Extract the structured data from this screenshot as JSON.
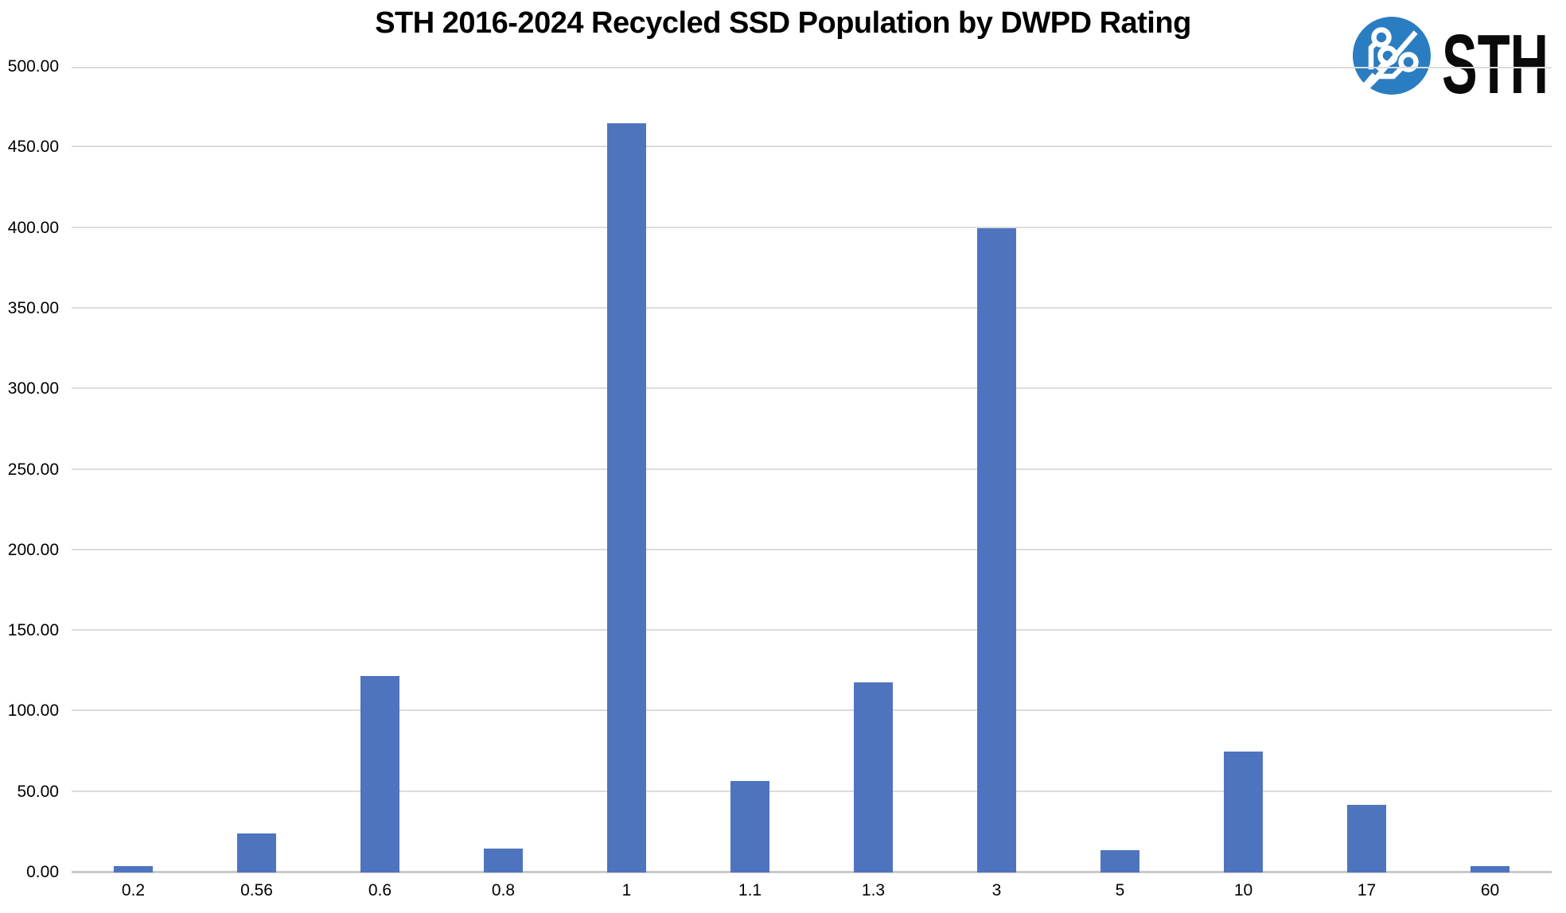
{
  "logo": {
    "text": "STH",
    "circle_color": "#2b7dc2",
    "trace_color": "#ffffff",
    "text_color": "#0a0a0a"
  },
  "chart_data": {
    "type": "bar",
    "title": "STH 2016-2024 Recycled SSD Population by DWPD Rating",
    "categories": [
      "0.2",
      "0.56",
      "0.6",
      "0.8",
      "1",
      "1.1",
      "1.3",
      "3",
      "5",
      "10",
      "17",
      "60"
    ],
    "values": [
      4,
      24,
      122,
      15,
      465,
      57,
      118,
      400,
      14,
      75,
      42,
      4
    ],
    "xlabel": "",
    "ylabel": "",
    "ylim": [
      0,
      500
    ],
    "ytick_step": 50,
    "ytick_decimals": 2,
    "ytick_labels": [
      "0.00",
      "50.00",
      "100.00",
      "150.00",
      "200.00",
      "250.00",
      "300.00",
      "350.00",
      "400.00",
      "450.00",
      "500.00"
    ],
    "bar_color": "#4e74be",
    "gridline_color": "#dcdcdc",
    "axis_text_color": "#000000",
    "grid": true,
    "legend_position": "none"
  }
}
